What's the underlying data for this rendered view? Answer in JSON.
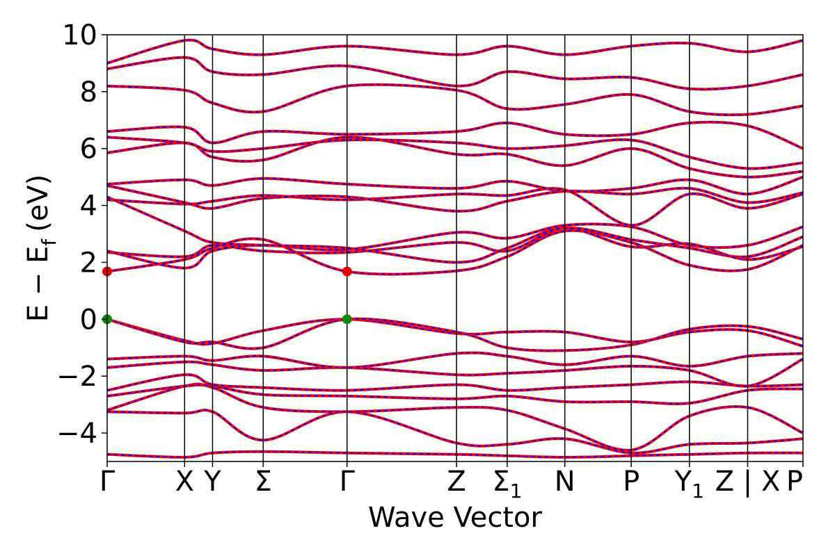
{
  "chart_data": {
    "type": "line",
    "title": "",
    "xlabel": "Wave Vector",
    "ylabel": {
      "main": "E − E",
      "sub": "f",
      "unit": "(eV)"
    },
    "ylim": [
      -5,
      10
    ],
    "y_ticks": [
      -4,
      -2,
      0,
      2,
      4,
      6,
      8,
      10
    ],
    "y_tick_labels": [
      "−4",
      "−2",
      "0",
      "2",
      "4",
      "6",
      "8",
      "10"
    ],
    "kpath": [
      {
        "label": "Γ",
        "sub": "",
        "x": 0
      },
      {
        "label": "X",
        "sub": "",
        "x": 1.33
      },
      {
        "label": "Y",
        "sub": "",
        "x": 1.81
      },
      {
        "label": "Σ",
        "sub": "",
        "x": 2.68
      },
      {
        "label": "Γ",
        "sub": "",
        "x": 4.12
      },
      {
        "label": "Z",
        "sub": "",
        "x": 6.0
      },
      {
        "label": "Σ",
        "sub": "1",
        "x": 6.87
      },
      {
        "label": "N",
        "sub": "",
        "x": 7.86
      },
      {
        "label": "P",
        "sub": "",
        "x": 9.0
      },
      {
        "label": "Y",
        "sub": "1",
        "x": 10.0
      },
      {
        "label": "Z | X",
        "sub": "",
        "x": 11.0
      },
      {
        "label": "P",
        "sub": "",
        "x": 11.95
      }
    ],
    "xlim": [
      0,
      11.95
    ],
    "grid": false,
    "series": [
      {
        "style": "solid",
        "color": "#ff0000"
      },
      {
        "style": "dashed",
        "color": "#0000ff"
      }
    ],
    "highlight_points": [
      {
        "x": 0,
        "y": 1.68,
        "color": "#e00000",
        "role": "CBM"
      },
      {
        "x": 4.12,
        "y": 1.68,
        "color": "#e00000",
        "role": "CBM"
      },
      {
        "x": 0,
        "y": 0.0,
        "color": "#0a8a0a",
        "role": "VBM"
      },
      {
        "x": 4.12,
        "y": 0.0,
        "color": "#0a8a0a",
        "role": "VBM"
      }
    ],
    "bands": [
      [
        -4.75,
        -4.85,
        -4.7,
        -4.65,
        -4.7,
        -4.75,
        -4.8,
        -4.85,
        -4.8,
        -4.75,
        -4.7,
        -4.7
      ],
      [
        -3.25,
        -3.3,
        -3.25,
        -4.25,
        -3.25,
        -4.35,
        -4.4,
        -4.2,
        -4.7,
        -4.4,
        -4.35,
        -4.2
      ],
      [
        -3.2,
        -2.35,
        -2.4,
        -3.1,
        -3.25,
        -3.1,
        -3.2,
        -3.85,
        -4.6,
        -3.4,
        -3.1,
        -4.0
      ],
      [
        -2.7,
        -2.35,
        -2.35,
        -2.65,
        -2.7,
        -2.8,
        -2.7,
        -2.9,
        -2.9,
        -2.95,
        -2.5,
        -2.45
      ],
      [
        -2.5,
        -1.95,
        -2.3,
        -2.4,
        -2.5,
        -2.3,
        -2.5,
        -2.4,
        -2.3,
        -2.2,
        -2.35,
        -2.3
      ],
      [
        -1.7,
        -1.5,
        -1.6,
        -1.8,
        -1.7,
        -1.95,
        -1.9,
        -1.8,
        -1.65,
        -1.8,
        -2.35,
        -1.4
      ],
      [
        -1.4,
        -1.3,
        -1.45,
        -1.3,
        -1.7,
        -1.2,
        -1.3,
        -1.6,
        -1.3,
        -1.65,
        -1.3,
        -1.2
      ],
      [
        0.0,
        -0.75,
        -0.85,
        -0.4,
        0.0,
        -0.5,
        -0.45,
        -0.45,
        -0.8,
        -0.45,
        -0.4,
        -0.95
      ],
      [
        0.0,
        -0.8,
        -0.8,
        -1.0,
        0.0,
        -0.45,
        -1.0,
        -1.1,
        -0.9,
        -0.35,
        -0.25,
        -0.7
      ],
      [
        1.68,
        2.1,
        2.5,
        2.8,
        1.68,
        1.7,
        2.2,
        3.1,
        2.7,
        1.9,
        1.75,
        2.6
      ],
      [
        2.35,
        2.2,
        2.6,
        2.4,
        2.35,
        2.7,
        2.4,
        3.2,
        2.8,
        2.5,
        2.2,
        2.9
      ],
      [
        2.4,
        1.8,
        2.4,
        2.6,
        2.45,
        3.05,
        2.85,
        3.3,
        3.25,
        2.6,
        2.6,
        3.25
      ],
      [
        4.3,
        3.1,
        2.7,
        2.6,
        2.5,
        2.0,
        2.5,
        3.2,
        2.55,
        2.65,
        2.1,
        2.55
      ],
      [
        4.2,
        4.05,
        4.15,
        4.35,
        4.2,
        4.4,
        4.35,
        4.55,
        3.3,
        4.4,
        3.9,
        4.4
      ],
      [
        4.7,
        4.1,
        3.9,
        4.25,
        4.3,
        3.8,
        4.15,
        4.5,
        4.4,
        4.6,
        4.1,
        4.45
      ],
      [
        4.75,
        4.9,
        4.7,
        4.95,
        4.75,
        4.6,
        4.85,
        4.5,
        4.6,
        4.9,
        4.4,
        5.0
      ],
      [
        5.85,
        6.2,
        5.7,
        5.6,
        6.4,
        5.8,
        5.8,
        5.4,
        6.0,
        5.3,
        5.0,
        5.2
      ],
      [
        6.4,
        6.2,
        5.9,
        6.0,
        6.3,
        6.2,
        6.0,
        6.1,
        6.3,
        5.7,
        5.3,
        5.5
      ],
      [
        6.6,
        6.75,
        6.2,
        6.6,
        6.5,
        6.6,
        6.9,
        6.5,
        6.5,
        6.9,
        6.8,
        6.0
      ],
      [
        8.2,
        8.05,
        7.6,
        7.3,
        8.2,
        8.05,
        7.4,
        7.55,
        7.9,
        7.3,
        7.2,
        7.5
      ],
      [
        8.8,
        9.2,
        8.7,
        8.6,
        8.9,
        8.2,
        8.7,
        8.45,
        8.5,
        8.1,
        8.2,
        8.6
      ],
      [
        9.0,
        9.8,
        9.5,
        9.3,
        9.6,
        9.3,
        9.6,
        9.3,
        9.6,
        9.7,
        9.4,
        9.8
      ]
    ]
  }
}
